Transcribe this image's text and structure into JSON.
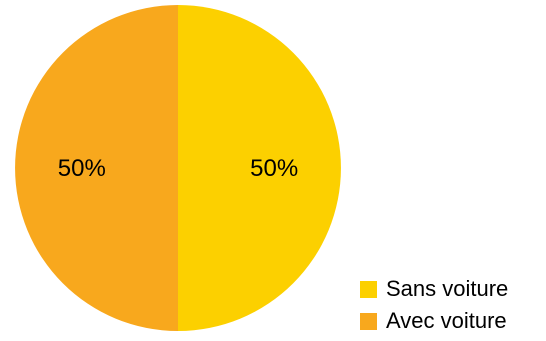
{
  "chart_data": {
    "type": "pie",
    "title": "",
    "slices": [
      {
        "label": "Sans voiture",
        "value": 50,
        "display": "50%",
        "color": "#FCD000"
      },
      {
        "label": "Avec voiture",
        "value": 50,
        "display": "50%",
        "color": "#F8A81D"
      }
    ],
    "start_angle_deg": 0,
    "direction": "clockwise",
    "legend_position": "bottom-right"
  }
}
